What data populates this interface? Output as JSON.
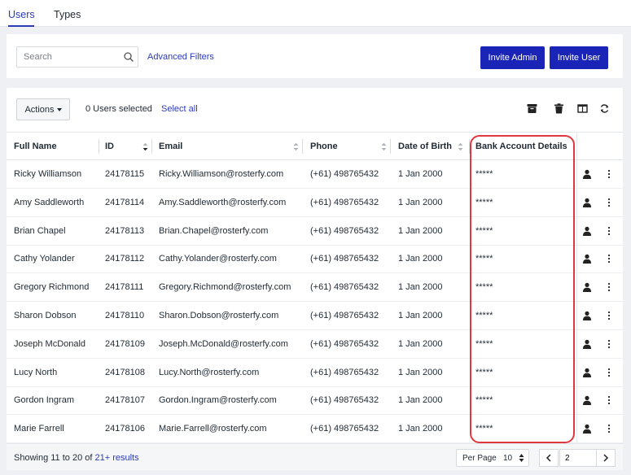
{
  "tabs": [
    {
      "label": "Users",
      "active": true
    },
    {
      "label": "Types",
      "active": false
    }
  ],
  "filters": {
    "search_placeholder": "Search",
    "advanced_filters_label": "Advanced Filters",
    "invite_admin_label": "Invite Admin",
    "invite_user_label": "Invite User"
  },
  "toolbar": {
    "actions_label": "Actions",
    "selected_text": "0 Users selected",
    "select_all_label": "Select all",
    "icons": [
      "archive-icon",
      "trash-icon",
      "columns-icon",
      "refresh-icon"
    ]
  },
  "table": {
    "columns": [
      "Full Name",
      "ID",
      "Email",
      "Phone",
      "Date of Birth",
      "Bank Account Details"
    ],
    "rows": [
      {
        "name": "Ricky Williamson",
        "id": "24178115",
        "email": "Ricky.Williamson@rosterfy.com",
        "phone": "(+61) 498765432",
        "dob": "1 Jan 2000",
        "bank": "*****"
      },
      {
        "name": "Amy Saddleworth",
        "id": "24178114",
        "email": "Amy.Saddleworth@rosterfy.com",
        "phone": "(+61) 498765432",
        "dob": "1 Jan 2000",
        "bank": "*****"
      },
      {
        "name": "Brian Chapel",
        "id": "24178113",
        "email": "Brian.Chapel@rosterfy.com",
        "phone": "(+61) 498765432",
        "dob": "1 Jan 2000",
        "bank": "*****"
      },
      {
        "name": "Cathy Yolander",
        "id": "24178112",
        "email": "Cathy.Yolander@rosterfy.com",
        "phone": "(+61) 498765432",
        "dob": "1 Jan 2000",
        "bank": "*****"
      },
      {
        "name": "Gregory Richmond",
        "id": "24178111",
        "email": "Gregory.Richmond@rosterfy.com",
        "phone": "(+61) 498765432",
        "dob": "1 Jan 2000",
        "bank": "*****"
      },
      {
        "name": "Sharon Dobson",
        "id": "24178110",
        "email": "Sharon.Dobson@rosterfy.com",
        "phone": "(+61) 498765432",
        "dob": "1 Jan 2000",
        "bank": "*****"
      },
      {
        "name": "Joseph McDonald",
        "id": "24178109",
        "email": "Joseph.McDonald@rosterfy.com",
        "phone": "(+61) 498765432",
        "dob": "1 Jan 2000",
        "bank": "*****"
      },
      {
        "name": "Lucy North",
        "id": "24178108",
        "email": "Lucy.North@rosterfy.com",
        "phone": "(+61) 498765432",
        "dob": "1 Jan 2000",
        "bank": "*****"
      },
      {
        "name": "Gordon Ingram",
        "id": "24178107",
        "email": "Gordon.Ingram@rosterfy.com",
        "phone": "(+61) 498765432",
        "dob": "1 Jan 2000",
        "bank": "*****"
      },
      {
        "name": "Marie Farrell",
        "id": "24178106",
        "email": "Marie.Farrell@rosterfy.com",
        "phone": "(+61) 498765432",
        "dob": "1 Jan 2000",
        "bank": "*****"
      }
    ]
  },
  "footer": {
    "showing_prefix": "Showing 11 to 20 of ",
    "results_link": "21+ results",
    "per_page_label": "Per Page",
    "per_page_value": "10",
    "current_page": "2"
  },
  "colors": {
    "primary": "#1a25b8",
    "link": "#2b3bb8",
    "highlight": "#e0383e"
  }
}
